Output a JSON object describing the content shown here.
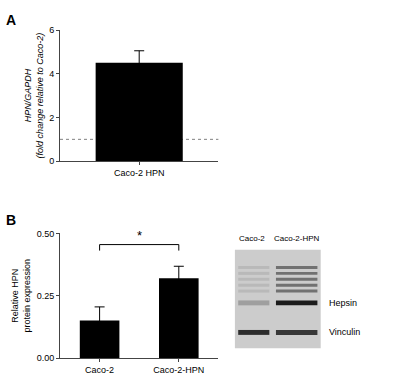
{
  "chart_data": [
    {
      "type": "bar",
      "title": "A",
      "categories": [
        "Caco-2 HPN"
      ],
      "values": [
        4.5
      ],
      "errors": [
        0.55
      ],
      "color": "#000000",
      "ylabel": "HPN/GAPDH\n(fold change relative to Caco-2)",
      "ylim": [
        0,
        6
      ],
      "yticks": [
        0,
        2,
        4,
        6
      ],
      "reference_line": 1.0,
      "grid": false
    },
    {
      "type": "bar",
      "title": "B",
      "categories": [
        "Caco-2",
        "Caco-2-HPN"
      ],
      "values": [
        0.15,
        0.32
      ],
      "errors": [
        0.055,
        0.048
      ],
      "color": "#000000",
      "ylabel": "Relative HPN\nprotein expression",
      "ylim": [
        0,
        0.5
      ],
      "yticks": [
        {
          "value": 0,
          "label": "0.00"
        },
        0.25,
        {
          "value": 0.5,
          "label": "0.50"
        }
      ],
      "significance": {
        "between": [
          "Caco-2",
          "Caco-2-HPN"
        ],
        "y": 0.455,
        "text": "*"
      },
      "lane_labels": [
        "Caco-2",
        "Caco-2-HPN"
      ],
      "band_labels": [
        "Hepsin",
        "Vinculin"
      ],
      "grid": false
    }
  ]
}
